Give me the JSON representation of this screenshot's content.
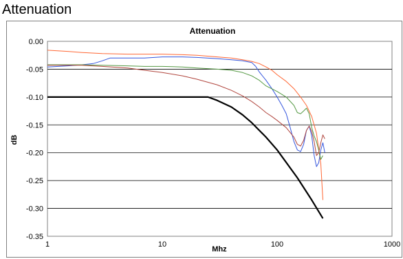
{
  "page": {
    "heading": "Attenuation"
  },
  "chart_data": {
    "type": "line",
    "title": "Attenuation",
    "xlabel": "Mhz",
    "ylabel": "dB",
    "x_scale": "log",
    "xlim": [
      1,
      1000
    ],
    "ylim": [
      -0.35,
      0.0
    ],
    "x_ticks": [
      1,
      10,
      100,
      1000
    ],
    "x_tick_labels": [
      "1",
      "10",
      "100",
      "1000"
    ],
    "y_ticks": [
      0.0,
      -0.05,
      -0.1,
      -0.15,
      -0.2,
      -0.25,
      -0.3,
      -0.35
    ],
    "y_tick_labels": [
      "0.00",
      "-0.05",
      "-0.10",
      "-0.15",
      "-0.20",
      "-0.25",
      "-0.30",
      "-0.35"
    ],
    "grid": "horizontal",
    "legend": "none",
    "colors": {
      "orange": "#ff6633",
      "blue": "#3355dd",
      "green": "#559944",
      "red": "#b0443c",
      "black": "#000000",
      "grid": "#000000",
      "plot_border": "#808080"
    },
    "series": [
      {
        "color_key": "orange",
        "stroke_width": 1,
        "points": [
          [
            1,
            -0.016
          ],
          [
            1.5,
            -0.018
          ],
          [
            2,
            -0.02
          ],
          [
            3,
            -0.022
          ],
          [
            5,
            -0.023
          ],
          [
            7,
            -0.023
          ],
          [
            10,
            -0.023
          ],
          [
            15,
            -0.024
          ],
          [
            20,
            -0.025
          ],
          [
            30,
            -0.028
          ],
          [
            40,
            -0.03
          ],
          [
            50,
            -0.033
          ],
          [
            60,
            -0.036
          ],
          [
            70,
            -0.04
          ],
          [
            80,
            -0.046
          ],
          [
            90,
            -0.052
          ],
          [
            100,
            -0.06
          ],
          [
            120,
            -0.072
          ],
          [
            140,
            -0.085
          ],
          [
            160,
            -0.1
          ],
          [
            180,
            -0.115
          ],
          [
            200,
            -0.135
          ],
          [
            220,
            -0.165
          ],
          [
            240,
            -0.22
          ],
          [
            250,
            -0.285
          ]
        ]
      },
      {
        "color_key": "blue",
        "stroke_width": 1,
        "points": [
          [
            1,
            -0.046
          ],
          [
            1.5,
            -0.044
          ],
          [
            2,
            -0.042
          ],
          [
            2.5,
            -0.04
          ],
          [
            3,
            -0.035
          ],
          [
            3.5,
            -0.03
          ],
          [
            5,
            -0.03
          ],
          [
            7,
            -0.03
          ],
          [
            10,
            -0.028
          ],
          [
            15,
            -0.028
          ],
          [
            20,
            -0.029
          ],
          [
            30,
            -0.031
          ],
          [
            40,
            -0.033
          ],
          [
            50,
            -0.035
          ],
          [
            60,
            -0.038
          ],
          [
            65,
            -0.045
          ],
          [
            70,
            -0.055
          ],
          [
            80,
            -0.07
          ],
          [
            90,
            -0.085
          ],
          [
            100,
            -0.1
          ],
          [
            110,
            -0.115
          ],
          [
            120,
            -0.13
          ],
          [
            130,
            -0.155
          ],
          [
            140,
            -0.18
          ],
          [
            150,
            -0.195
          ],
          [
            160,
            -0.198
          ],
          [
            170,
            -0.185
          ],
          [
            180,
            -0.16
          ],
          [
            190,
            -0.152
          ],
          [
            200,
            -0.17
          ],
          [
            210,
            -0.205
          ],
          [
            220,
            -0.225
          ],
          [
            230,
            -0.218
          ],
          [
            240,
            -0.195
          ],
          [
            250,
            -0.182
          ],
          [
            260,
            -0.2
          ]
        ]
      },
      {
        "color_key": "green",
        "stroke_width": 1,
        "points": [
          [
            1,
            -0.042
          ],
          [
            2,
            -0.042
          ],
          [
            3,
            -0.043
          ],
          [
            5,
            -0.044
          ],
          [
            7,
            -0.045
          ],
          [
            10,
            -0.045
          ],
          [
            15,
            -0.046
          ],
          [
            20,
            -0.048
          ],
          [
            30,
            -0.05
          ],
          [
            40,
            -0.052
          ],
          [
            50,
            -0.056
          ],
          [
            60,
            -0.062
          ],
          [
            70,
            -0.07
          ],
          [
            80,
            -0.08
          ],
          [
            100,
            -0.09
          ],
          [
            120,
            -0.1
          ],
          [
            140,
            -0.115
          ],
          [
            150,
            -0.128
          ],
          [
            160,
            -0.13
          ],
          [
            170,
            -0.125
          ],
          [
            180,
            -0.12
          ],
          [
            190,
            -0.13
          ],
          [
            200,
            -0.155
          ],
          [
            210,
            -0.17
          ],
          [
            220,
            -0.18
          ],
          [
            230,
            -0.195
          ],
          [
            240,
            -0.212
          ],
          [
            250,
            -0.205
          ]
        ]
      },
      {
        "color_key": "red",
        "stroke_width": 1,
        "points": [
          [
            1,
            -0.043
          ],
          [
            2,
            -0.043
          ],
          [
            3,
            -0.045
          ],
          [
            5,
            -0.048
          ],
          [
            7,
            -0.052
          ],
          [
            10,
            -0.056
          ],
          [
            15,
            -0.062
          ],
          [
            20,
            -0.068
          ],
          [
            30,
            -0.078
          ],
          [
            40,
            -0.088
          ],
          [
            50,
            -0.098
          ],
          [
            60,
            -0.108
          ],
          [
            70,
            -0.118
          ],
          [
            80,
            -0.128
          ],
          [
            90,
            -0.135
          ],
          [
            100,
            -0.142
          ],
          [
            120,
            -0.155
          ],
          [
            140,
            -0.172
          ],
          [
            150,
            -0.185
          ],
          [
            160,
            -0.188
          ],
          [
            170,
            -0.178
          ],
          [
            180,
            -0.16
          ],
          [
            190,
            -0.152
          ],
          [
            200,
            -0.162
          ],
          [
            210,
            -0.18
          ],
          [
            220,
            -0.205
          ],
          [
            230,
            -0.2
          ],
          [
            240,
            -0.182
          ],
          [
            250,
            -0.168
          ],
          [
            260,
            -0.175
          ]
        ]
      },
      {
        "color_key": "black",
        "stroke_width": 2.2,
        "points": [
          [
            1,
            -0.1
          ],
          [
            3,
            -0.1
          ],
          [
            10,
            -0.1
          ],
          [
            20,
            -0.1
          ],
          [
            25,
            -0.1
          ],
          [
            30,
            -0.106
          ],
          [
            40,
            -0.118
          ],
          [
            50,
            -0.132
          ],
          [
            60,
            -0.146
          ],
          [
            80,
            -0.172
          ],
          [
            100,
            -0.195
          ],
          [
            150,
            -0.245
          ],
          [
            200,
            -0.285
          ],
          [
            250,
            -0.318
          ]
        ]
      }
    ]
  }
}
